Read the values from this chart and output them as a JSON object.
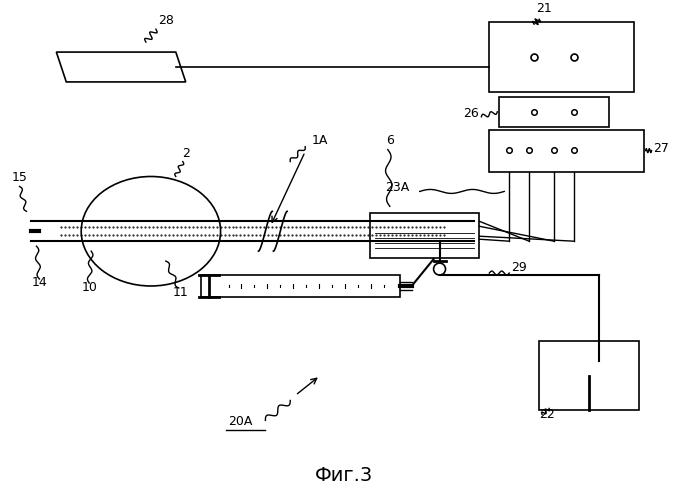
{
  "title": "Фиг.3",
  "background": "#ffffff",
  "line_color": "#000000",
  "label_28": "28",
  "label_21": "21",
  "label_26": "26",
  "label_27": "27",
  "label_23A": "23A",
  "label_1A": "1A",
  "label_6": "6",
  "label_2": "2",
  "label_15": "15",
  "label_14": "14",
  "label_10": "10",
  "label_11": "11",
  "label_29": "29",
  "label_22": "22",
  "label_20A": "20A"
}
